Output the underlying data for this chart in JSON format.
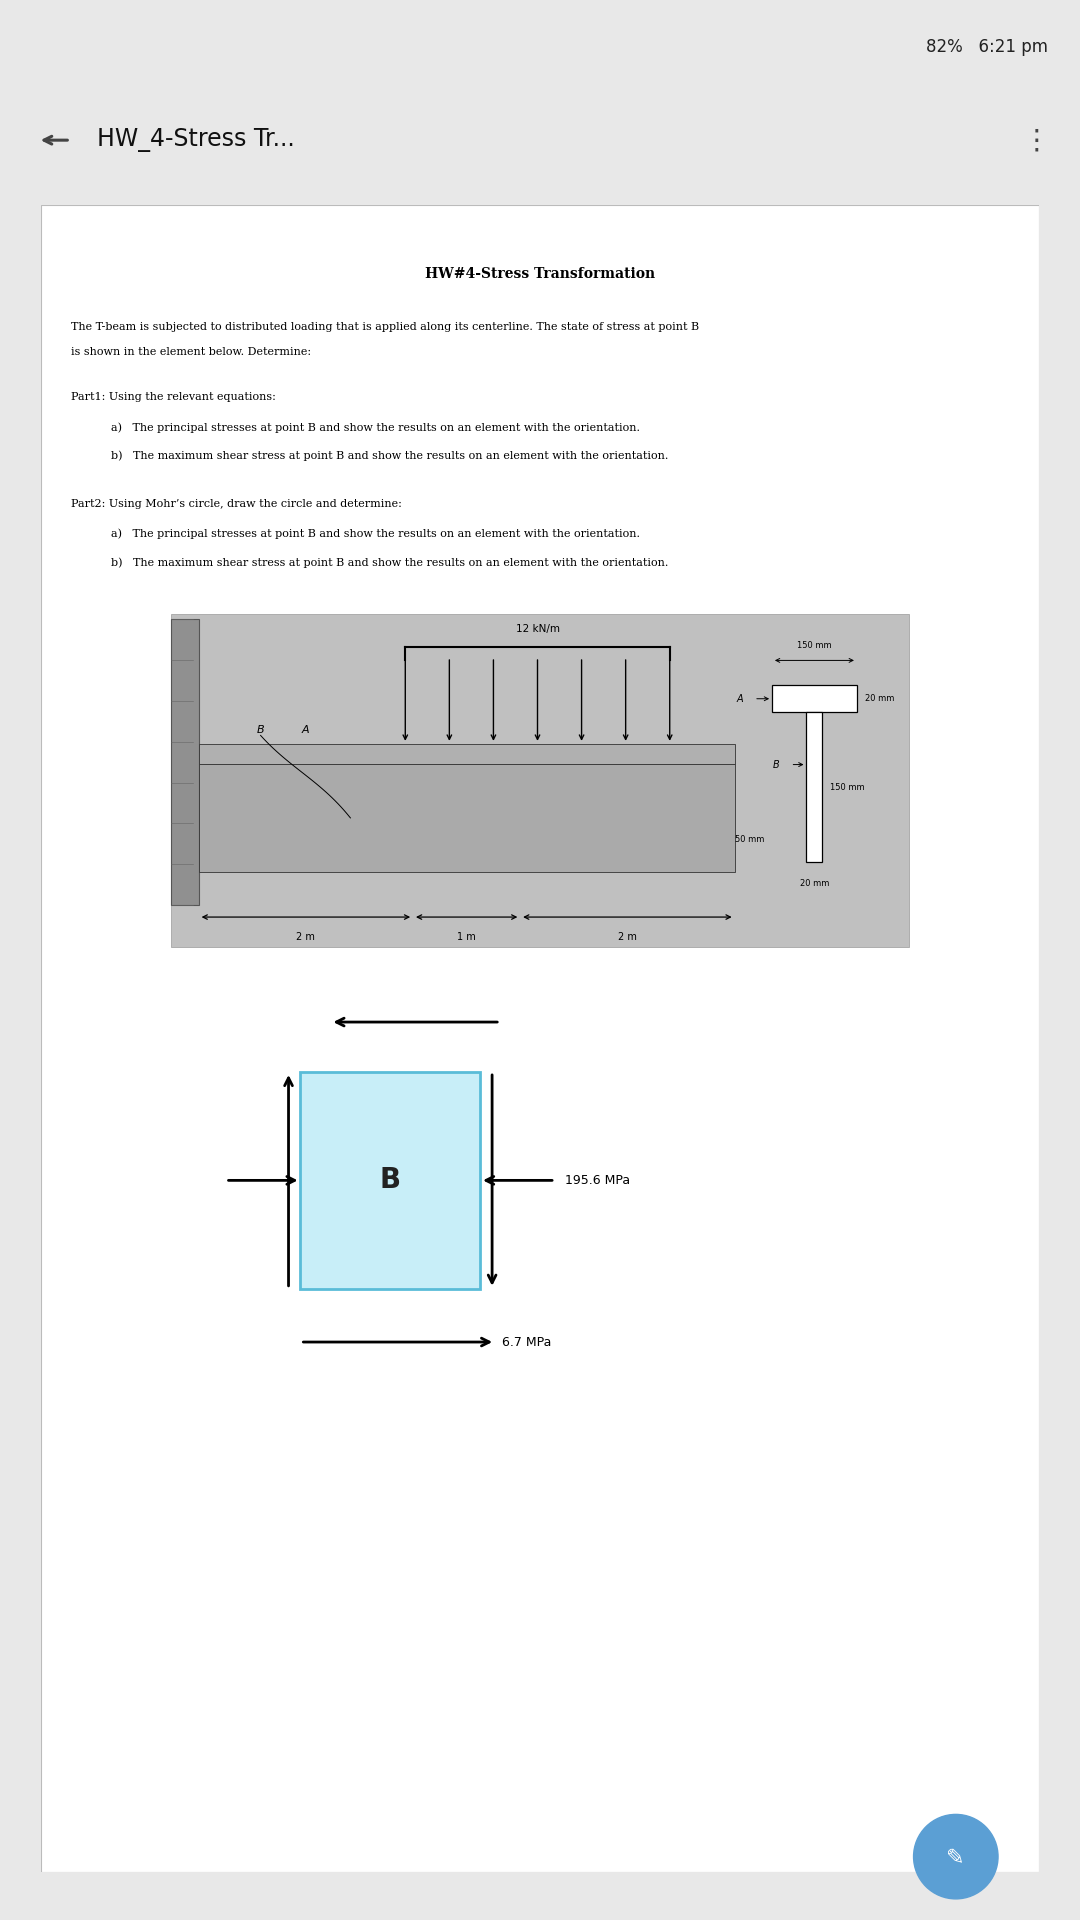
{
  "title": "HW#4-Stress Transformation",
  "status_bar_text": "82%   6:21 pm",
  "nav_title": "HW_4-Stress Tr...",
  "body_line1": "The T-beam is subjected to distributed loading that is applied along its centerline. The state of stress at point B",
  "body_line2": "is shown in the element below. Determine:",
  "part1_title": "Part1: Using the relevant equations:",
  "part1_a": "a)   The principal stresses at point B and show the results on an element with the orientation.",
  "part1_b": "b)   The maximum shear stress at point B and show the results on an element with the orientation.",
  "part2_title": "Part2: Using Mohr’s circle, draw the circle and determine:",
  "part2_a": "a)   The principal stresses at point B and show the results on an element with the orientation.",
  "part2_b": "b)   The maximum shear stress at point B and show the results on an element with the orientation.",
  "stress_label": "195.6 MPa",
  "shear_label": "6.7 MPa",
  "element_label": "B",
  "bg_color": "#e8e8e8",
  "page_bg": "#ffffff",
  "element_fill": "#c8eef8",
  "diagram_bg": "#c0c0c0"
}
